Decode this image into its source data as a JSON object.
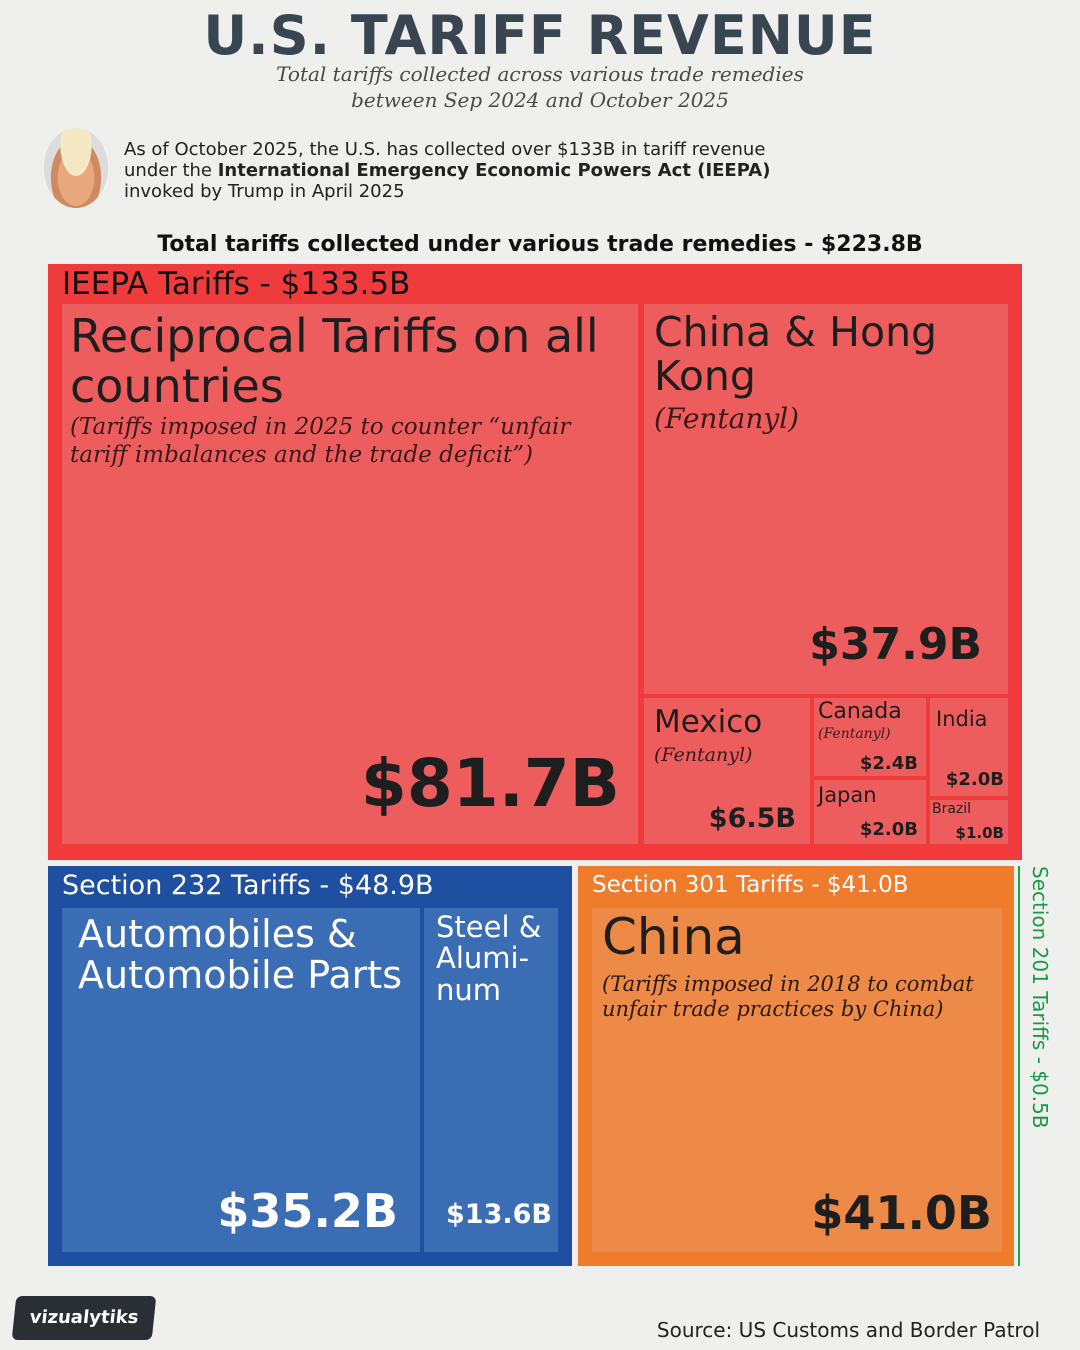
{
  "header": {
    "title": "U.S. TARIFF REVENUE",
    "subtitle_line1": "Total tariffs collected across various trade remedies",
    "subtitle_line2": "between Sep 2024 and October 2025"
  },
  "intro": {
    "line1": "As of October 2025, the U.S. has collected over $133B in tariff revenue",
    "line2_prefix": "under the ",
    "line2_bold": "International Emergency Economic Powers Act (IEEPA)",
    "line3": "invoked by Trump in April 2025"
  },
  "total_line": "Total tariffs collected under various trade remedies - $223.8B",
  "chart_data": {
    "type": "treemap",
    "total": {
      "label": "Total tariffs collected under various trade remedies",
      "value": 223.8,
      "unit": "$B"
    },
    "groups": [
      {
        "name": "IEEPA Tariffs - $133.5B",
        "value": 133.5,
        "color": "#ef3b3c",
        "tile_color": "#ee5d5e",
        "items": [
          {
            "name": "Reciprocal Tariffs on all countries",
            "note": "(Tariffs imposed in 2025 to counter “unfair tariff imbalances and the trade deficit”)",
            "value": 81.7,
            "label": "$81.7B"
          },
          {
            "name": "China & Hong Kong",
            "note": "(Fentanyl)",
            "value": 37.9,
            "label": "$37.9B"
          },
          {
            "name": "Mexico",
            "note": "(Fentanyl)",
            "value": 6.5,
            "label": "$6.5B"
          },
          {
            "name": "Canada",
            "note": "(Fentanyl)",
            "value": 2.4,
            "label": "$2.4B"
          },
          {
            "name": "India",
            "note": "",
            "value": 2.0,
            "label": "$2.0B"
          },
          {
            "name": "Japan",
            "note": "",
            "value": 2.0,
            "label": "$2.0B"
          },
          {
            "name": "Brazil",
            "note": "",
            "value": 1.0,
            "label": "$1.0B"
          }
        ]
      },
      {
        "name": "Section 232 Tariffs - $48.9B",
        "value": 48.9,
        "color": "#1f4fa0",
        "tile_color": "#3b6db5",
        "items": [
          {
            "name": "Automobiles & Automobile Parts",
            "note": "",
            "value": 35.2,
            "label": "$35.2B"
          },
          {
            "name": "Steel & Alumi- num",
            "note": "",
            "value": 13.6,
            "label": "$13.6B"
          }
        ]
      },
      {
        "name": "Section 301 Tariffs - $41.0B",
        "value": 41.0,
        "color": "#ef7b2d",
        "tile_color": "#ee8a48",
        "items": [
          {
            "name": "China",
            "note": "(Tariffs imposed in 2018 to combat unfair trade practices by China)",
            "value": 41.0,
            "label": "$41.0B"
          }
        ]
      },
      {
        "name": "Section 201 Tariffs - $0.5B",
        "value": 0.5,
        "color": "#1aa54b",
        "items": []
      }
    ]
  },
  "footer": {
    "logo": "vizualytiks",
    "source": "Source: US Customs and Border Patrol"
  }
}
